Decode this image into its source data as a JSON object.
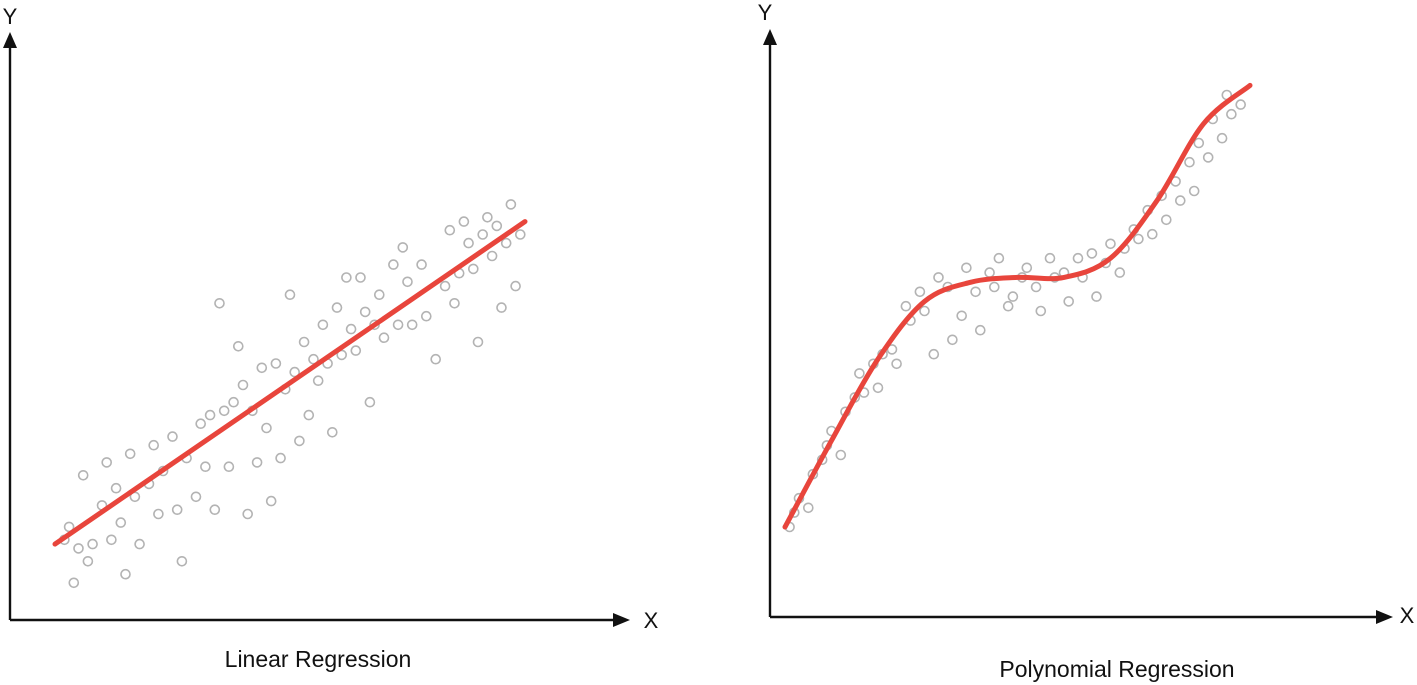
{
  "colors": {
    "axis": "#111111",
    "points": "#b3b3b3",
    "fit_line": "#e8453c"
  },
  "chart_data": [
    {
      "type": "scatter",
      "title": "Linear Regression",
      "xlabel": "X",
      "ylabel": "Y",
      "xlim": [
        0,
        10
      ],
      "ylim": [
        0,
        10
      ],
      "grid": false,
      "axis_ticks": false,
      "points": [
        [
          0.2,
          1.4
        ],
        [
          0.3,
          1.7
        ],
        [
          0.4,
          0.4
        ],
        [
          0.5,
          1.2
        ],
        [
          0.6,
          2.9
        ],
        [
          0.7,
          0.9
        ],
        [
          0.8,
          1.3
        ],
        [
          1,
          2.2
        ],
        [
          1.1,
          3.2
        ],
        [
          1.2,
          1.4
        ],
        [
          1.3,
          2.6
        ],
        [
          1.4,
          1.8
        ],
        [
          1.5,
          0.6
        ],
        [
          1.6,
          3.4
        ],
        [
          1.7,
          2.4
        ],
        [
          1.8,
          1.3
        ],
        [
          2,
          2.7
        ],
        [
          2.1,
          3.6
        ],
        [
          2.2,
          2
        ],
        [
          2.3,
          3
        ],
        [
          2.5,
          3.8
        ],
        [
          2.6,
          2.1
        ],
        [
          2.7,
          0.9
        ],
        [
          2.8,
          3.3
        ],
        [
          3,
          2.4
        ],
        [
          3.1,
          4.1
        ],
        [
          3.2,
          3.1
        ],
        [
          3.3,
          4.3
        ],
        [
          3.4,
          2.1
        ],
        [
          3.5,
          6.9
        ],
        [
          3.6,
          4.4
        ],
        [
          3.7,
          3.1
        ],
        [
          3.8,
          4.6
        ],
        [
          3.9,
          5.9
        ],
        [
          4,
          5
        ],
        [
          4.1,
          2
        ],
        [
          4.2,
          4.4
        ],
        [
          4.3,
          3.2
        ],
        [
          4.4,
          5.4
        ],
        [
          4.5,
          4
        ],
        [
          4.6,
          2.3
        ],
        [
          4.7,
          5.5
        ],
        [
          4.8,
          3.3
        ],
        [
          4.9,
          4.9
        ],
        [
          5,
          7.1
        ],
        [
          5.1,
          5.3
        ],
        [
          5.2,
          3.7
        ],
        [
          5.3,
          6
        ],
        [
          5.4,
          4.3
        ],
        [
          5.5,
          5.6
        ],
        [
          5.6,
          5.1
        ],
        [
          5.7,
          6.4
        ],
        [
          5.8,
          5.5
        ],
        [
          5.9,
          3.9
        ],
        [
          6,
          6.8
        ],
        [
          6.1,
          5.7
        ],
        [
          6.2,
          7.5
        ],
        [
          6.3,
          6.3
        ],
        [
          6.4,
          5.8
        ],
        [
          6.5,
          7.5
        ],
        [
          6.6,
          6.7
        ],
        [
          6.7,
          4.6
        ],
        [
          6.8,
          6.4
        ],
        [
          6.9,
          7.1
        ],
        [
          7,
          6.1
        ],
        [
          7.2,
          7.8
        ],
        [
          7.3,
          6.4
        ],
        [
          7.4,
          8.2
        ],
        [
          7.5,
          7.4
        ],
        [
          7.6,
          6.4
        ],
        [
          7.8,
          7.8
        ],
        [
          7.9,
          6.6
        ],
        [
          8.1,
          5.6
        ],
        [
          8.3,
          7.3
        ],
        [
          8.4,
          8.6
        ],
        [
          8.5,
          6.9
        ],
        [
          8.6,
          7.6
        ],
        [
          8.7,
          8.8
        ],
        [
          8.8,
          8.3
        ],
        [
          8.9,
          7.7
        ],
        [
          9,
          6
        ],
        [
          9.1,
          8.5
        ],
        [
          9.2,
          8.9
        ],
        [
          9.3,
          8
        ],
        [
          9.4,
          8.7
        ],
        [
          9.5,
          6.8
        ],
        [
          9.6,
          8.3
        ],
        [
          9.7,
          9.2
        ],
        [
          9.8,
          7.3
        ],
        [
          9.9,
          8.5
        ]
      ],
      "fit_line": [
        [
          0,
          1.3
        ],
        [
          10,
          8.8
        ]
      ]
    },
    {
      "type": "scatter",
      "title": "Polynomial Regression",
      "xlabel": "X",
      "ylabel": "Y",
      "xlim": [
        0,
        10
      ],
      "ylim": [
        0,
        10
      ],
      "grid": false,
      "axis_ticks": false,
      "points": [
        [
          0.1,
          1.0
        ],
        [
          0.2,
          1.3
        ],
        [
          0.3,
          1.6
        ],
        [
          0.5,
          1.4
        ],
        [
          0.6,
          2.1
        ],
        [
          0.8,
          2.4
        ],
        [
          0.9,
          2.7
        ],
        [
          1,
          3.0
        ],
        [
          1.2,
          2.5
        ],
        [
          1.3,
          3.4
        ],
        [
          1.5,
          3.7
        ],
        [
          1.6,
          4.2
        ],
        [
          1.7,
          3.8
        ],
        [
          1.9,
          4.4
        ],
        [
          2,
          3.9
        ],
        [
          2.1,
          4.6
        ],
        [
          2.3,
          4.7
        ],
        [
          2.4,
          4.4
        ],
        [
          2.6,
          5.6
        ],
        [
          2.7,
          5.3
        ],
        [
          2.9,
          5.9
        ],
        [
          3,
          5.5
        ],
        [
          3.2,
          4.6
        ],
        [
          3.3,
          6.2
        ],
        [
          3.5,
          6.0
        ],
        [
          3.6,
          4.9
        ],
        [
          3.8,
          5.4
        ],
        [
          3.9,
          6.4
        ],
        [
          4.1,
          5.9
        ],
        [
          4.2,
          5.1
        ],
        [
          4.4,
          6.3
        ],
        [
          4.5,
          6.0
        ],
        [
          4.6,
          6.6
        ],
        [
          4.8,
          5.6
        ],
        [
          4.9,
          5.8
        ],
        [
          5.1,
          6.2
        ],
        [
          5.2,
          6.4
        ],
        [
          5.4,
          6.0
        ],
        [
          5.5,
          5.5
        ],
        [
          5.7,
          6.6
        ],
        [
          5.8,
          6.2
        ],
        [
          6,
          6.3
        ],
        [
          6.1,
          5.7
        ],
        [
          6.3,
          6.6
        ],
        [
          6.4,
          6.2
        ],
        [
          6.6,
          6.7
        ],
        [
          6.7,
          5.8
        ],
        [
          6.9,
          6.5
        ],
        [
          7,
          6.9
        ],
        [
          7.2,
          6.3
        ],
        [
          7.3,
          6.8
        ],
        [
          7.5,
          7.2
        ],
        [
          7.6,
          7.0
        ],
        [
          7.8,
          7.6
        ],
        [
          7.9,
          7.1
        ],
        [
          8.1,
          7.9
        ],
        [
          8.2,
          7.4
        ],
        [
          8.4,
          8.2
        ],
        [
          8.5,
          7.8
        ],
        [
          8.7,
          8.6
        ],
        [
          8.8,
          8.0
        ],
        [
          8.9,
          9.0
        ],
        [
          9.1,
          8.7
        ],
        [
          9.2,
          9.5
        ],
        [
          9.4,
          9.1
        ],
        [
          9.5,
          10.0
        ],
        [
          9.6,
          9.6
        ],
        [
          9.8,
          9.8
        ]
      ],
      "fit_line": [
        [
          0,
          1.0
        ],
        [
          1,
          2.8
        ],
        [
          2,
          4.5
        ],
        [
          3,
          5.7
        ],
        [
          4,
          6.1
        ],
        [
          5,
          6.2
        ],
        [
          6,
          6.2
        ],
        [
          7,
          6.6
        ],
        [
          8,
          7.8
        ],
        [
          9,
          9.4
        ],
        [
          10,
          10.2
        ]
      ]
    }
  ]
}
